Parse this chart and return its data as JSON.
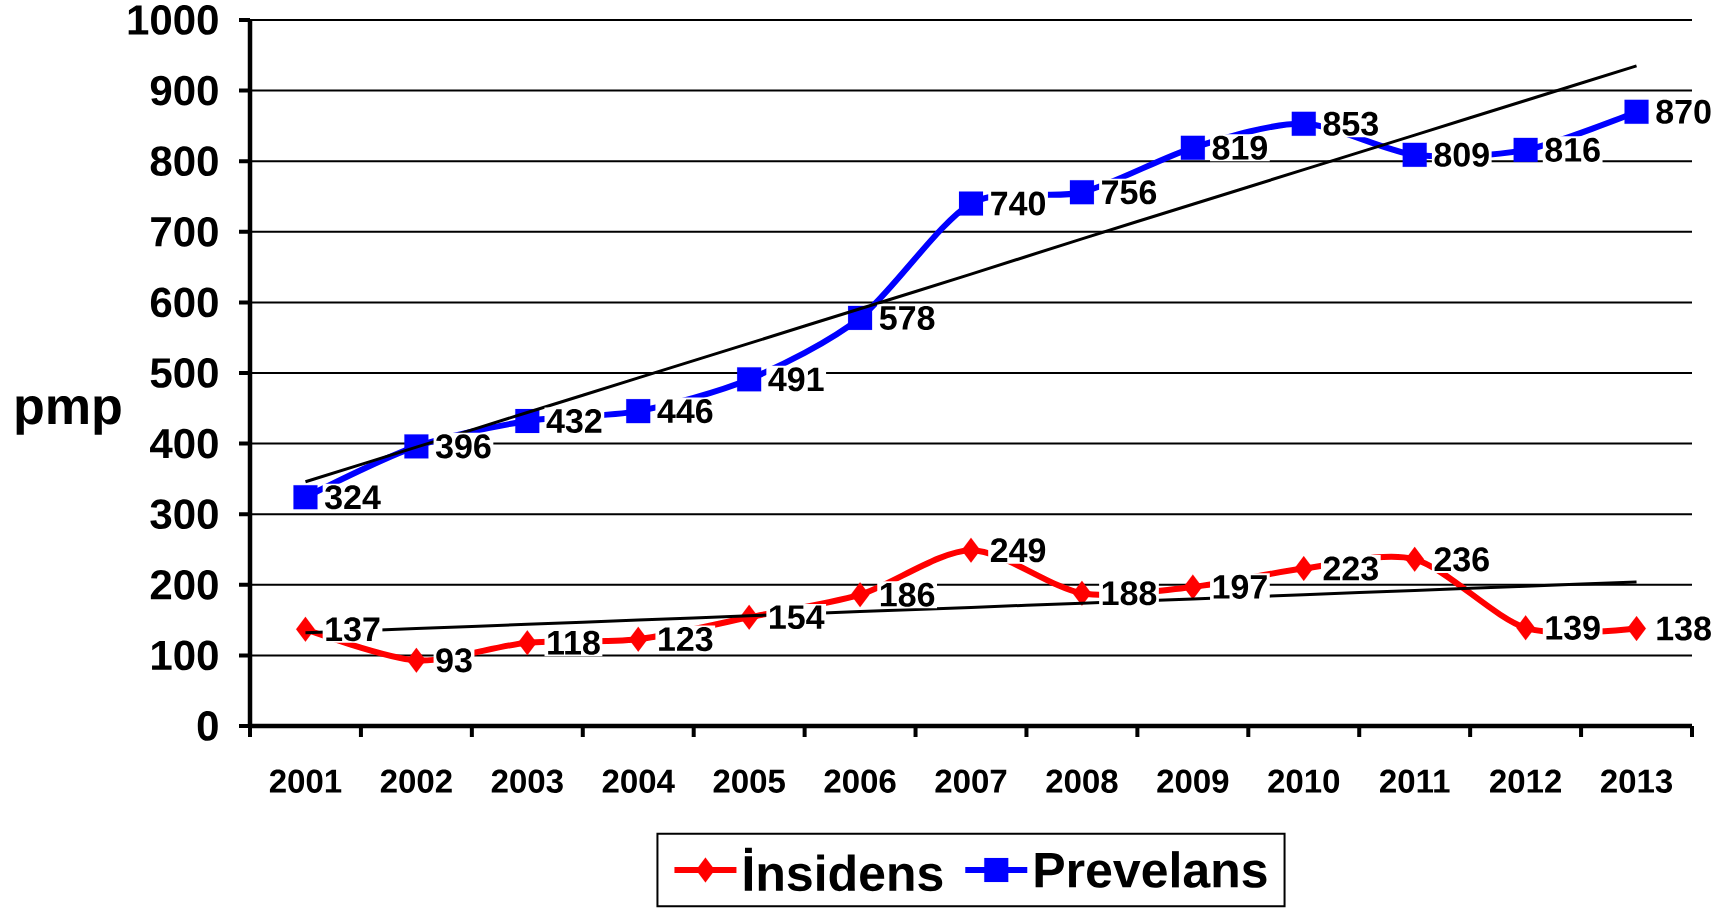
{
  "chart_data": {
    "type": "line",
    "ylabel": "pmp",
    "categories": [
      "2001",
      "2002",
      "2003",
      "2004",
      "2005",
      "2006",
      "2007",
      "2008",
      "2009",
      "2010",
      "2011",
      "2012",
      "2013"
    ],
    "ylim": [
      0,
      1000
    ],
    "yticks": [
      0,
      100,
      200,
      300,
      400,
      500,
      600,
      700,
      800,
      900,
      1000
    ],
    "grid": "y",
    "legend": "bottom",
    "series": [
      {
        "name": "İnsidens",
        "color": "#ff0000",
        "marker": "diamond",
        "values": [
          137,
          93,
          118,
          123,
          154,
          186,
          249,
          188,
          197,
          223,
          236,
          139,
          138
        ],
        "value_labels": [
          "137",
          "93",
          "118",
          "123",
          "154",
          "186",
          "249",
          "188",
          "197",
          "223",
          "236",
          "139",
          "138"
        ]
      },
      {
        "name": "Prevelans",
        "color": "#0000ff",
        "marker": "square",
        "values": [
          324,
          396,
          432,
          446,
          491,
          578,
          740,
          756,
          819,
          853,
          809,
          816,
          870
        ],
        "value_labels": [
          "324",
          "396",
          "432",
          "446",
          "491",
          "578",
          "740",
          "756",
          "819",
          "853",
          "809",
          "816",
          "870"
        ]
      },
      {
        "type": "line",
        "color": "#000000",
        "marker": "none",
        "values": [
          132,
          138,
          144,
          150,
          156,
          162,
          168,
          174,
          180,
          186,
          192,
          198,
          204
        ]
      },
      {
        "type": "line",
        "color": "#000000",
        "marker": "none",
        "values": [
          346,
          395,
          444,
          493,
          542,
          591,
          640,
          690,
          739,
          788,
          837,
          886,
          935
        ]
      }
    ]
  }
}
